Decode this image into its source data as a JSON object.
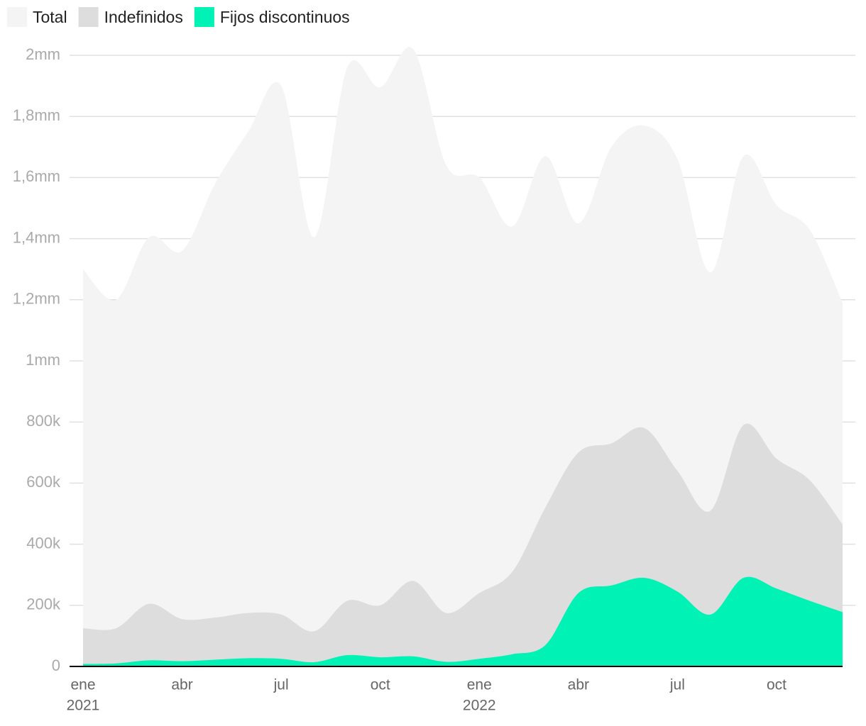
{
  "chart_data": {
    "type": "area",
    "x": [
      "2021-01",
      "2021-02",
      "2021-03",
      "2021-04",
      "2021-05",
      "2021-06",
      "2021-07",
      "2021-08",
      "2021-09",
      "2021-10",
      "2021-11",
      "2021-12",
      "2022-01",
      "2022-02",
      "2022-03",
      "2022-04",
      "2022-05",
      "2022-06",
      "2022-07",
      "2022-08",
      "2022-09",
      "2022-10",
      "2022-11",
      "2022-12"
    ],
    "series": [
      {
        "name": "Total",
        "color": "#f4f4f4",
        "values": [
          1300000,
          1200000,
          1405000,
          1360000,
          1580000,
          1750000,
          1900000,
          1405000,
          1960000,
          1895000,
          2020000,
          1640000,
          1600000,
          1440000,
          1670000,
          1450000,
          1700000,
          1770000,
          1660000,
          1290000,
          1670000,
          1510000,
          1430000,
          1190000
        ]
      },
      {
        "name": "Indefinidos",
        "color": "#dddddd",
        "values": [
          125000,
          125000,
          205000,
          155000,
          160000,
          175000,
          170000,
          115000,
          215000,
          200000,
          280000,
          175000,
          240000,
          310000,
          520000,
          700000,
          730000,
          780000,
          640000,
          510000,
          790000,
          680000,
          610000,
          465000
        ]
      },
      {
        "name": "Fijos discontinuos",
        "color": "#00f2b4",
        "values": [
          8000,
          10000,
          20000,
          17000,
          22000,
          27000,
          25000,
          14000,
          37000,
          30000,
          33000,
          15000,
          25000,
          40000,
          70000,
          240000,
          265000,
          290000,
          245000,
          170000,
          290000,
          255000,
          215000,
          178000
        ]
      }
    ],
    "xlim": [
      "2021-01",
      "2022-12"
    ],
    "xticks": [
      {
        "value": "2021-01",
        "label": "ene"
      },
      {
        "value": "2021-04",
        "label": "abr"
      },
      {
        "value": "2021-07",
        "label": "jul"
      },
      {
        "value": "2021-10",
        "label": "oct"
      },
      {
        "value": "2022-01",
        "label": "ene"
      },
      {
        "value": "2022-04",
        "label": "abr"
      },
      {
        "value": "2022-07",
        "label": "jul"
      },
      {
        "value": "2022-10",
        "label": "oct"
      }
    ],
    "xtick_years": [
      {
        "value": "2021-01",
        "label": "2021"
      },
      {
        "value": "2022-01",
        "label": "2022"
      }
    ],
    "ylim": [
      0,
      2000000
    ],
    "yticks": [
      0,
      {
        "value": 200000,
        "label": "200k"
      },
      {
        "value": 400000,
        "label": "400k"
      },
      {
        "value": 600000,
        "label": "600k"
      },
      {
        "value": 800000,
        "label": "800k"
      },
      {
        "value": 1000000,
        "label": "1mm"
      },
      {
        "value": 1200000,
        "label": "1,2mm"
      },
      {
        "value": 1400000,
        "label": "1,4mm"
      },
      {
        "value": 1600000,
        "label": "1,6mm"
      },
      {
        "value": 1800000,
        "label": "1,8mm"
      },
      {
        "value": 2000000,
        "label": "2mm"
      }
    ],
    "grid": true,
    "legend": "top-left"
  }
}
